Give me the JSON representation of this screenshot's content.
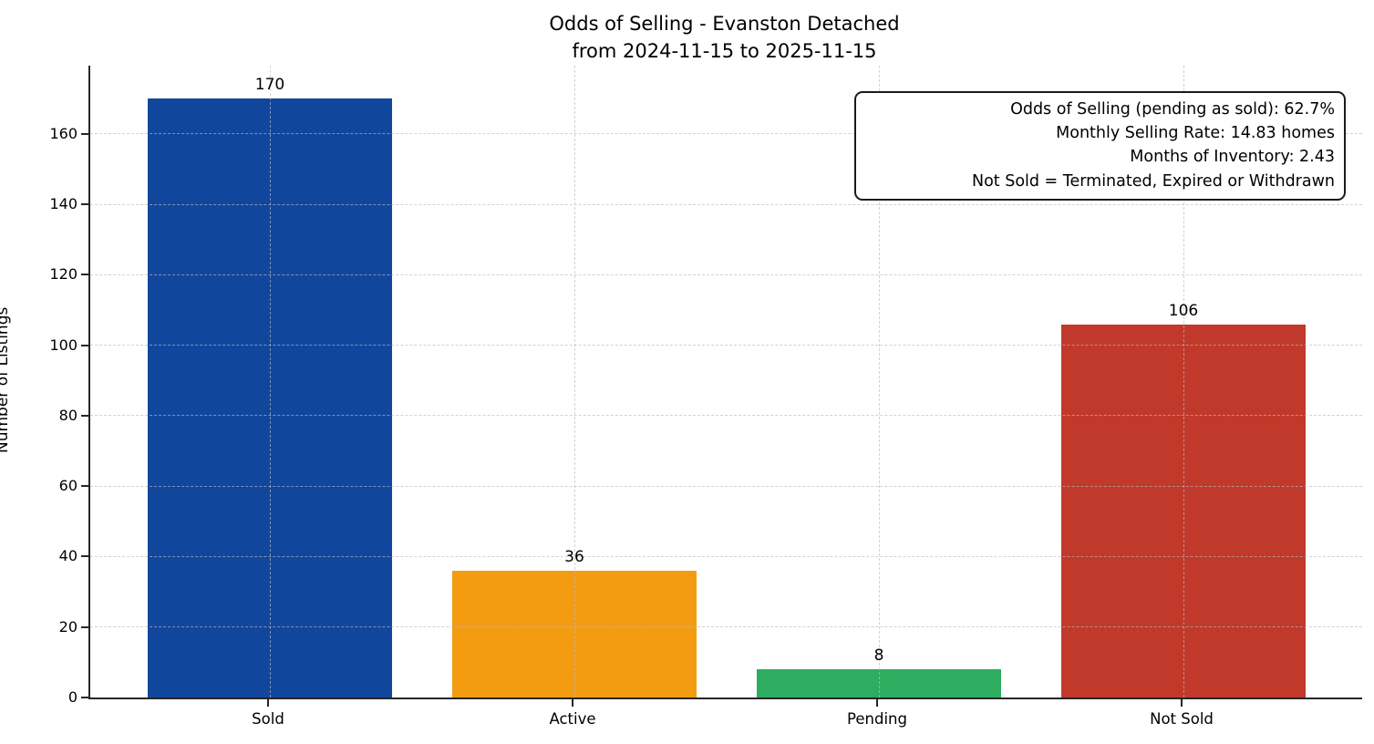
{
  "chart_data": {
    "type": "bar",
    "title": "Odds of Selling - Evanston Detached",
    "subtitle": "from 2024-11-15 to 2025-11-15",
    "ylabel": "Number of Listings",
    "xlabel": "",
    "categories": [
      "Sold",
      "Active",
      "Pending",
      "Not Sold"
    ],
    "values": [
      170,
      36,
      8,
      106
    ],
    "bar_colors": [
      "#11469d",
      "#f39c12",
      "#2eac60",
      "#c0392b"
    ],
    "yticks": [
      0,
      20,
      40,
      60,
      80,
      100,
      120,
      140,
      160
    ],
    "ylim": [
      0,
      179.4
    ],
    "grid": "both-dashed",
    "legend": "none",
    "annotation": {
      "lines": [
        "Odds of Selling (pending as sold): 62.7%",
        "Monthly Selling Rate: 14.83 homes",
        "Months of Inventory: 2.43",
        "Not Sold = Terminated, Expired or Withdrawn"
      ]
    }
  }
}
